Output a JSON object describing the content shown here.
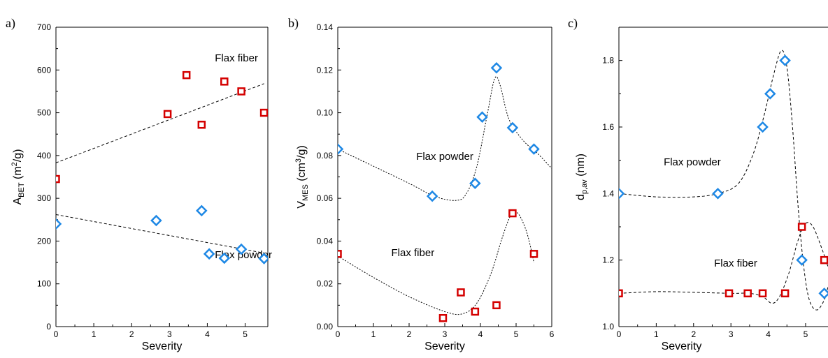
{
  "colors": {
    "red": "#d40000",
    "blue": "#1e88e5"
  },
  "chart_data": [
    {
      "panel": "a)",
      "type": "scatter",
      "xlabel": "Severity",
      "ylabel_main": "A",
      "ylabel_sub": "BET",
      "ylabel_rest_pre": " (m",
      "ylabel_sup": "2",
      "ylabel_rest_post": "/g)",
      "xlim": [
        0,
        5.6
      ],
      "ylim": [
        0,
        700
      ],
      "xticks": [
        "0",
        "1",
        "2",
        "3",
        "4",
        "5"
      ],
      "xtick_values": [
        0,
        1,
        2,
        3,
        4,
        5
      ],
      "yticks": [
        "0",
        "100",
        "200",
        "300",
        "400",
        "500",
        "600",
        "700"
      ],
      "ytick_values": [
        0,
        100,
        200,
        300,
        400,
        500,
        600,
        700
      ],
      "annotations": [
        {
          "text": "Flax fiber",
          "x": 4.2,
          "y": 620
        },
        {
          "text": "Flax powder",
          "x": 4.2,
          "y": 160
        }
      ],
      "series": [
        {
          "marker": "square",
          "color": "red",
          "points": [
            [
              0,
              345
            ],
            [
              2.95,
              497
            ],
            [
              3.45,
              588
            ],
            [
              3.85,
              472
            ],
            [
              4.45,
              573
            ],
            [
              4.9,
              550
            ],
            [
              5.5,
              500
            ]
          ],
          "fit": [
            [
              0,
              383
            ],
            [
              5.5,
              568
            ]
          ]
        },
        {
          "marker": "diamond",
          "color": "blue",
          "points": [
            [
              0,
              240
            ],
            [
              2.65,
              248
            ],
            [
              3.85,
              271
            ],
            [
              4.05,
              170
            ],
            [
              4.45,
              160
            ],
            [
              4.9,
              181
            ],
            [
              5.5,
              159
            ]
          ],
          "fit": [
            [
              0,
              262
            ],
            [
              5.5,
              172
            ]
          ]
        }
      ]
    },
    {
      "panel": "b)",
      "type": "scatter",
      "xlabel": "Severity",
      "ylabel_main": "V",
      "ylabel_sub": "MES",
      "ylabel_rest_pre": " (cm",
      "ylabel_sup": "3",
      "ylabel_rest_post": "/g)",
      "xlim": [
        0,
        6
      ],
      "ylim": [
        0,
        0.14
      ],
      "xticks": [
        "0",
        "1",
        "2",
        "3",
        "4",
        "5",
        "6"
      ],
      "xtick_values": [
        0,
        1,
        2,
        3,
        4,
        5,
        6
      ],
      "yticks": [
        "0.00",
        "0.02",
        "0.04",
        "0.06",
        "0.08",
        "0.10",
        "0.12",
        "0.14"
      ],
      "ytick_values": [
        0,
        0.02,
        0.04,
        0.06,
        0.08,
        0.1,
        0.12,
        0.14
      ],
      "annotations": [
        {
          "text": "Flax powder",
          "x": 2.2,
          "y": 0.078
        },
        {
          "text": "Flax fiber",
          "x": 1.5,
          "y": 0.033
        }
      ],
      "series": [
        {
          "marker": "diamond",
          "color": "blue",
          "points": [
            [
              0,
              0.083
            ],
            [
              2.65,
              0.061
            ],
            [
              3.85,
              0.067
            ],
            [
              4.05,
              0.098
            ],
            [
              4.45,
              0.121
            ],
            [
              4.9,
              0.093
            ],
            [
              5.5,
              0.083
            ]
          ],
          "fit": [
            [
              0,
              0.083
            ],
            [
              1,
              0.075
            ],
            [
              2,
              0.067
            ],
            [
              2.7,
              0.061
            ],
            [
              3.3,
              0.059
            ],
            [
              3.6,
              0.062
            ],
            [
              3.9,
              0.075
            ],
            [
              4.2,
              0.1
            ],
            [
              4.4,
              0.116
            ],
            [
              4.55,
              0.113
            ],
            [
              4.8,
              0.097
            ],
            [
              5.2,
              0.087
            ],
            [
              5.6,
              0.081
            ],
            [
              6,
              0.074
            ]
          ]
        },
        {
          "marker": "square",
          "color": "red",
          "points": [
            [
              0,
              0.034
            ],
            [
              2.95,
              0.004
            ],
            [
              3.45,
              0.016
            ],
            [
              3.85,
              0.007
            ],
            [
              4.45,
              0.01
            ],
            [
              4.9,
              0.053
            ],
            [
              5.5,
              0.034
            ]
          ],
          "fit": [
            [
              0,
              0.033
            ],
            [
              1,
              0.023
            ],
            [
              2,
              0.014
            ],
            [
              3,
              0.007
            ],
            [
              3.5,
              0.006
            ],
            [
              3.9,
              0.011
            ],
            [
              4.3,
              0.025
            ],
            [
              4.6,
              0.041
            ],
            [
              4.85,
              0.052
            ],
            [
              5.05,
              0.053
            ],
            [
              5.3,
              0.044
            ],
            [
              5.5,
              0.03
            ]
          ]
        }
      ]
    },
    {
      "panel": "c)",
      "type": "scatter",
      "xlabel": "Severity",
      "ylabel_main": "d",
      "ylabel_sub": "p,av",
      "ylabel_rest_pre": " (nm)",
      "ylabel_sup": "",
      "ylabel_rest_post": "",
      "xlim": [
        0,
        5.6
      ],
      "ylim": [
        1.0,
        1.9
      ],
      "xticks": [
        "0",
        "1",
        "2",
        "3",
        "4",
        "5"
      ],
      "xtick_values": [
        0,
        1,
        2,
        3,
        4,
        5
      ],
      "yticks": [
        "1.0",
        "1.2",
        "1.4",
        "1.6",
        "1.8"
      ],
      "ytick_values": [
        1.0,
        1.2,
        1.4,
        1.6,
        1.8
      ],
      "annotations": [
        {
          "text": "Flax powder",
          "x": 1.2,
          "y": 1.485
        },
        {
          "text": "Flax fiber",
          "x": 2.55,
          "y": 1.18
        }
      ],
      "series": [
        {
          "marker": "diamond",
          "color": "blue",
          "points": [
            [
              0,
              1.4
            ],
            [
              2.65,
              1.4
            ],
            [
              3.85,
              1.6
            ],
            [
              4.05,
              1.7
            ],
            [
              4.45,
              1.8
            ],
            [
              4.9,
              1.2
            ],
            [
              5.5,
              1.1
            ]
          ],
          "fit": [
            [
              0,
              1.4
            ],
            [
              1,
              1.39
            ],
            [
              2,
              1.39
            ],
            [
              2.65,
              1.4
            ],
            [
              3.2,
              1.43
            ],
            [
              3.6,
              1.52
            ],
            [
              3.9,
              1.64
            ],
            [
              4.15,
              1.76
            ],
            [
              4.35,
              1.83
            ],
            [
              4.5,
              1.78
            ],
            [
              4.65,
              1.6
            ],
            [
              4.8,
              1.36
            ],
            [
              4.95,
              1.18
            ],
            [
              5.1,
              1.08
            ],
            [
              5.3,
              1.05
            ],
            [
              5.5,
              1.08
            ],
            [
              5.6,
              1.12
            ]
          ]
        },
        {
          "marker": "square",
          "color": "red",
          "points": [
            [
              0,
              1.1
            ],
            [
              2.95,
              1.1
            ],
            [
              3.45,
              1.1
            ],
            [
              3.85,
              1.1
            ],
            [
              4.45,
              1.1
            ],
            [
              4.9,
              1.3
            ],
            [
              5.5,
              1.2
            ]
          ],
          "fit": [
            [
              0,
              1.1
            ],
            [
              1,
              1.105
            ],
            [
              2,
              1.103
            ],
            [
              3,
              1.1
            ],
            [
              3.5,
              1.1
            ],
            [
              3.85,
              1.09
            ],
            [
              4.1,
              1.07
            ],
            [
              4.3,
              1.09
            ],
            [
              4.55,
              1.16
            ],
            [
              4.8,
              1.26
            ],
            [
              5.0,
              1.31
            ],
            [
              5.2,
              1.3
            ],
            [
              5.45,
              1.23
            ],
            [
              5.6,
              1.18
            ]
          ]
        }
      ]
    }
  ]
}
